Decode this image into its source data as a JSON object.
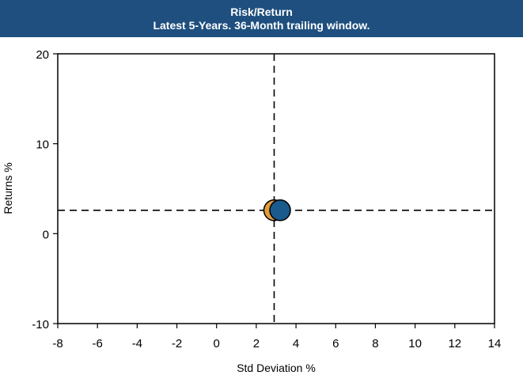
{
  "header": {
    "title": "Risk/Return",
    "subtitle": "Latest 5-Years. 36-Month trailing window."
  },
  "chart_data": {
    "type": "scatter",
    "title": "Risk/Return",
    "subtitle": "Latest 5-Years. 36-Month trailing window.",
    "xlabel": "Std Deviation %",
    "ylabel": "Returns %",
    "xlim": [
      -8,
      14
    ],
    "ylim": [
      -10,
      20
    ],
    "x_ticks": [
      "-8",
      "-6",
      "-4",
      "-2",
      "0",
      "2",
      "4",
      "6",
      "8",
      "10",
      "12",
      "14"
    ],
    "y_ticks": [
      "-10",
      "0",
      "10",
      "20"
    ],
    "grid": false,
    "reference_lines": {
      "x": 2.9,
      "y": 2.6,
      "style": "dashed"
    },
    "points": [
      {
        "x": 2.9,
        "y": 2.6,
        "marker": "diamond",
        "color": "#000000"
      },
      {
        "x": 2.9,
        "y": 2.6,
        "marker": "circle",
        "color": "#e39b3c"
      },
      {
        "x": 3.2,
        "y": 2.6,
        "marker": "circle",
        "color": "#1a5a8c"
      }
    ]
  }
}
